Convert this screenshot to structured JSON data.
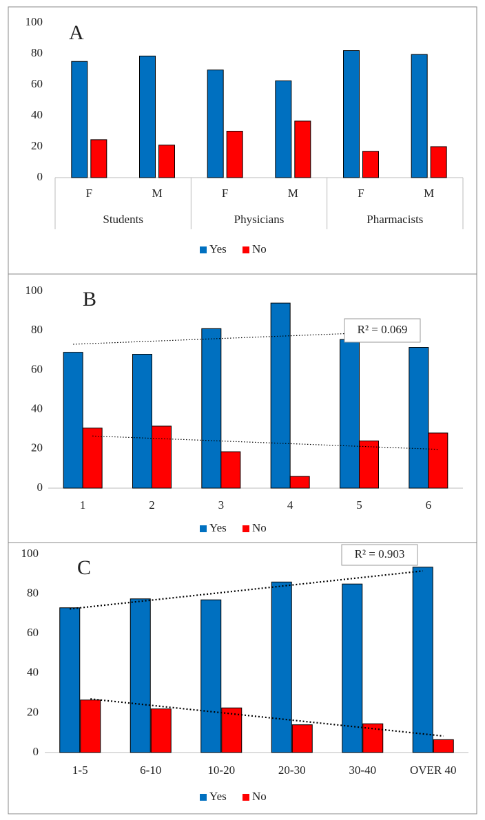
{
  "chart_data": [
    {
      "type": "bar",
      "label": "A",
      "categories": [
        "F",
        "M",
        "F",
        "M",
        "F",
        "M"
      ],
      "groups": [
        "Students",
        "Physicians",
        "Pharmacists"
      ],
      "series": [
        {
          "name": "Yes",
          "color": "#0070c0",
          "values": [
            75,
            78.5,
            69.5,
            62.5,
            82,
            79.5
          ]
        },
        {
          "name": "No",
          "color": "#ff0000",
          "values": [
            24.5,
            21,
            30,
            36.5,
            17,
            20
          ]
        }
      ],
      "ylim": [
        0,
        100
      ],
      "yticks": [
        0,
        20,
        40,
        60,
        80,
        100
      ],
      "legend": "bottom",
      "trendline": false
    },
    {
      "type": "bar",
      "label": "B",
      "categories": [
        "1",
        "2",
        "3",
        "4",
        "5",
        "6"
      ],
      "series": [
        {
          "name": "Yes",
          "color": "#0070c0",
          "values": [
            69,
            68,
            81,
            94,
            75.5,
            71.5
          ]
        },
        {
          "name": "No",
          "color": "#ff0000",
          "values": [
            30.5,
            31.5,
            18.5,
            6,
            24,
            28
          ]
        }
      ],
      "ylim": [
        0,
        100
      ],
      "yticks": [
        0,
        20,
        40,
        60,
        80,
        100
      ],
      "legend": "bottom",
      "trendline": true,
      "annotation": "R² = 0.069"
    },
    {
      "type": "bar",
      "label": "C",
      "categories": [
        "1-5",
        "6-10",
        "10-20",
        "20-30",
        "30-40",
        "OVER 40"
      ],
      "series": [
        {
          "name": "Yes",
          "color": "#0070c0",
          "values": [
            73,
            77.5,
            77,
            86,
            85,
            93.5
          ]
        },
        {
          "name": "No",
          "color": "#ff0000",
          "values": [
            26.5,
            22,
            22.5,
            14,
            14.5,
            6.5
          ]
        }
      ],
      "ylim": [
        0,
        100
      ],
      "yticks": [
        0,
        20,
        40,
        60,
        80,
        100
      ],
      "legend": "bottom",
      "trendline": true,
      "annotation": "R² = 0.903"
    }
  ]
}
